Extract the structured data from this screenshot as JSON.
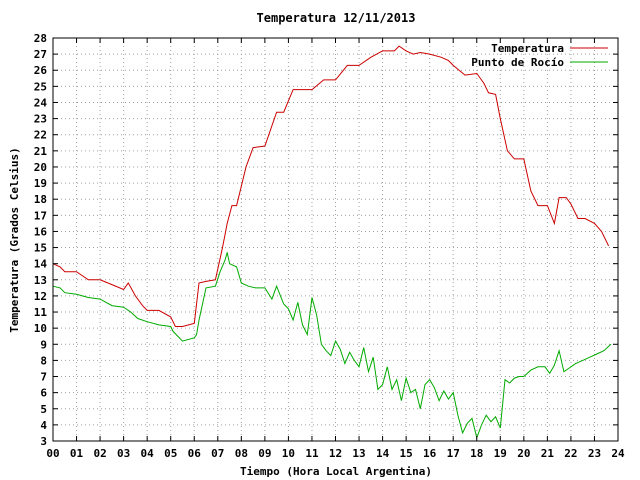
{
  "chart_data": {
    "type": "line",
    "title": "Temperatura 12/11/2013",
    "xlabel": "Tiempo (Hora Local Argentina)",
    "ylabel": "Temperatura (Grados Celsius)",
    "xlim": [
      0,
      24
    ],
    "ylim": [
      3,
      28
    ],
    "x_ticks": [
      "00",
      "01",
      "02",
      "03",
      "04",
      "05",
      "06",
      "07",
      "08",
      "09",
      "10",
      "11",
      "12",
      "13",
      "14",
      "15",
      "16",
      "17",
      "18",
      "19",
      "20",
      "21",
      "22",
      "23",
      "24"
    ],
    "y_ticks": [
      3,
      4,
      5,
      6,
      7,
      8,
      9,
      10,
      11,
      12,
      13,
      14,
      15,
      16,
      17,
      18,
      19,
      20,
      21,
      22,
      23,
      24,
      25,
      26,
      27,
      28
    ],
    "grid": true,
    "legend_position": "top-right",
    "series": [
      {
        "name": "Temperatura",
        "color": "#cc0000",
        "x": [
          0.0,
          0.3,
          0.5,
          1.0,
          1.5,
          2.0,
          2.5,
          3.0,
          3.2,
          3.5,
          3.8,
          4.0,
          4.5,
          5.0,
          5.2,
          5.5,
          6.0,
          6.2,
          6.5,
          6.9,
          7.2,
          7.4,
          7.6,
          7.8,
          8.2,
          8.5,
          9.0,
          9.5,
          9.8,
          10.2,
          10.5,
          11.0,
          11.5,
          12.0,
          12.5,
          13.0,
          13.5,
          14.0,
          14.5,
          14.7,
          15.0,
          15.3,
          15.6,
          16.0,
          16.5,
          16.8,
          17.0,
          17.5,
          18.0,
          18.3,
          18.5,
          18.8,
          19.0,
          19.3,
          19.6,
          20.0,
          20.3,
          20.6,
          21.0,
          21.3,
          21.5,
          21.8,
          22.0,
          22.3,
          22.6,
          23.0,
          23.3,
          23.6
        ],
        "y": [
          14,
          13.8,
          13.5,
          13.5,
          13.0,
          13.0,
          12.7,
          12.4,
          12.8,
          12.0,
          11.4,
          11.1,
          11.1,
          10.7,
          10.1,
          10.1,
          10.3,
          12.8,
          12.9,
          13.0,
          15.0,
          16.5,
          17.6,
          17.6,
          20.0,
          21.2,
          21.3,
          23.4,
          23.4,
          24.8,
          24.8,
          24.8,
          25.4,
          25.4,
          26.3,
          26.3,
          26.8,
          27.2,
          27.2,
          27.5,
          27.2,
          27.0,
          27.1,
          27.0,
          26.8,
          26.6,
          26.3,
          25.7,
          25.8,
          25.2,
          24.6,
          24.5,
          23.0,
          21.0,
          20.5,
          20.5,
          18.5,
          17.6,
          17.6,
          16.5,
          18.1,
          18.1,
          17.7,
          16.8,
          16.8,
          16.5,
          16.0,
          15.1
        ]
      },
      {
        "name": "Punto de Rocío",
        "color": "#00aa00",
        "x": [
          0.0,
          0.3,
          0.5,
          1.0,
          1.5,
          2.0,
          2.5,
          3.0,
          3.3,
          3.6,
          4.0,
          4.5,
          5.0,
          5.1,
          5.5,
          6.0,
          6.1,
          6.2,
          6.5,
          6.9,
          7.1,
          7.3,
          7.4,
          7.5,
          7.8,
          8.0,
          8.3,
          8.6,
          9.0,
          9.3,
          9.5,
          9.8,
          10.0,
          10.2,
          10.4,
          10.6,
          10.8,
          11.0,
          11.2,
          11.4,
          11.6,
          11.8,
          12.0,
          12.2,
          12.4,
          12.6,
          12.8,
          13.0,
          13.2,
          13.4,
          13.6,
          13.8,
          14.0,
          14.2,
          14.4,
          14.6,
          14.8,
          15.0,
          15.2,
          15.4,
          15.6,
          15.8,
          16.0,
          16.2,
          16.4,
          16.6,
          16.8,
          17.0,
          17.2,
          17.4,
          17.6,
          17.8,
          18.0,
          18.2,
          18.4,
          18.6,
          18.8,
          19.0,
          19.2,
          19.4,
          19.6,
          19.8,
          20.0,
          20.3,
          20.6,
          20.9,
          21.1,
          21.3,
          21.5,
          21.7,
          21.9,
          22.2,
          22.5,
          22.8,
          23.1,
          23.4,
          23.7
        ],
        "y": [
          12.6,
          12.5,
          12.2,
          12.1,
          11.9,
          11.8,
          11.4,
          11.3,
          11.0,
          10.6,
          10.4,
          10.2,
          10.1,
          9.8,
          9.2,
          9.4,
          9.6,
          10.5,
          12.5,
          12.6,
          13.5,
          14.2,
          14.7,
          14.0,
          13.8,
          12.8,
          12.6,
          12.5,
          12.5,
          11.8,
          12.6,
          11.5,
          11.2,
          10.5,
          11.6,
          10.2,
          9.6,
          11.9,
          10.8,
          9.0,
          8.6,
          8.3,
          9.2,
          8.7,
          7.8,
          8.5,
          8.0,
          7.6,
          8.8,
          7.3,
          8.2,
          6.2,
          6.5,
          7.6,
          6.2,
          6.8,
          5.5,
          6.9,
          6.0,
          6.2,
          5.0,
          6.5,
          6.8,
          6.3,
          5.5,
          6.1,
          5.6,
          6.0,
          4.6,
          3.5,
          4.1,
          4.4,
          3.2,
          4.0,
          4.6,
          4.2,
          4.5,
          3.8,
          6.8,
          6.6,
          6.9,
          7.0,
          7.0,
          7.4,
          7.6,
          7.6,
          7.2,
          7.7,
          8.6,
          7.3,
          7.5,
          7.8,
          8.0,
          8.2,
          8.4,
          8.6,
          9.0
        ]
      }
    ]
  }
}
